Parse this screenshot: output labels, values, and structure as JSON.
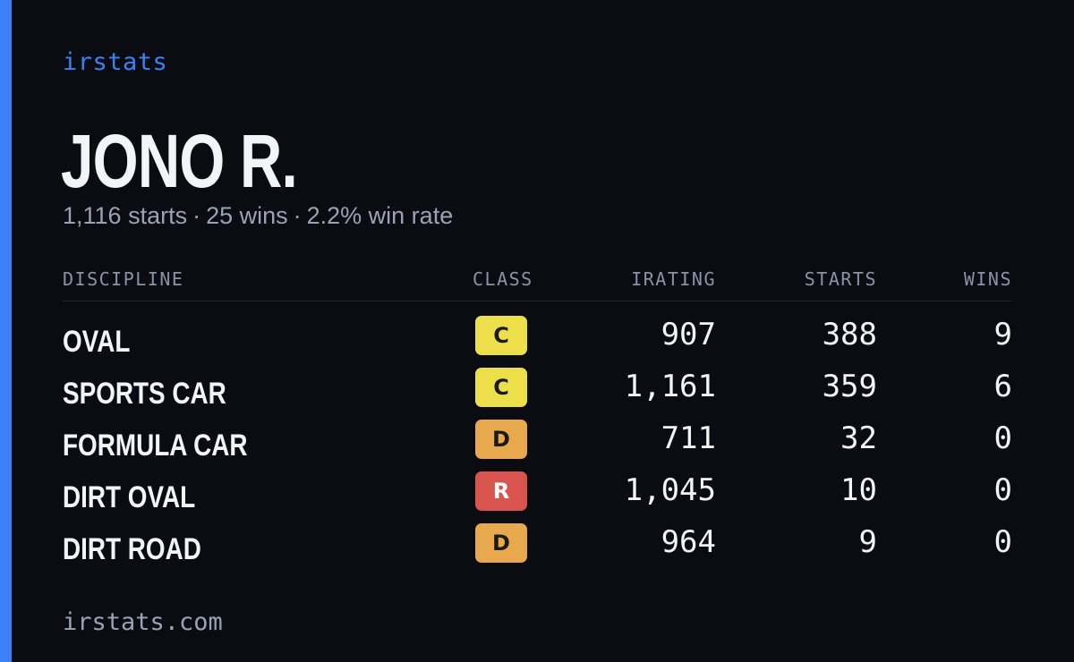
{
  "brand": "irstats",
  "driver": {
    "name": "JONO R.",
    "starts": "1,116 starts",
    "wins": "25 wins",
    "win_rate": "2.2% win rate",
    "separator": "·"
  },
  "table": {
    "headers": {
      "discipline": "DISCIPLINE",
      "class": "CLASS",
      "irating": "IRATING",
      "starts": "STARTS",
      "wins": "WINS"
    },
    "rows": [
      {
        "discipline": "OVAL",
        "class": "C",
        "irating": "907",
        "starts": "388",
        "wins": "9"
      },
      {
        "discipline": "SPORTS CAR",
        "class": "C",
        "irating": "1,161",
        "starts": "359",
        "wins": "6"
      },
      {
        "discipline": "FORMULA CAR",
        "class": "D",
        "irating": "711",
        "starts": "32",
        "wins": "0"
      },
      {
        "discipline": "DIRT OVAL",
        "class": "R",
        "irating": "1,045",
        "starts": "10",
        "wins": "0"
      },
      {
        "discipline": "DIRT ROAD",
        "class": "D",
        "irating": "964",
        "starts": "9",
        "wins": "0"
      }
    ]
  },
  "class_colors": {
    "C": "#ecdf4a",
    "D": "#e8a84e",
    "R": "#d9534f"
  },
  "accent_color": "#3b82f6",
  "footer": "irstats.com"
}
